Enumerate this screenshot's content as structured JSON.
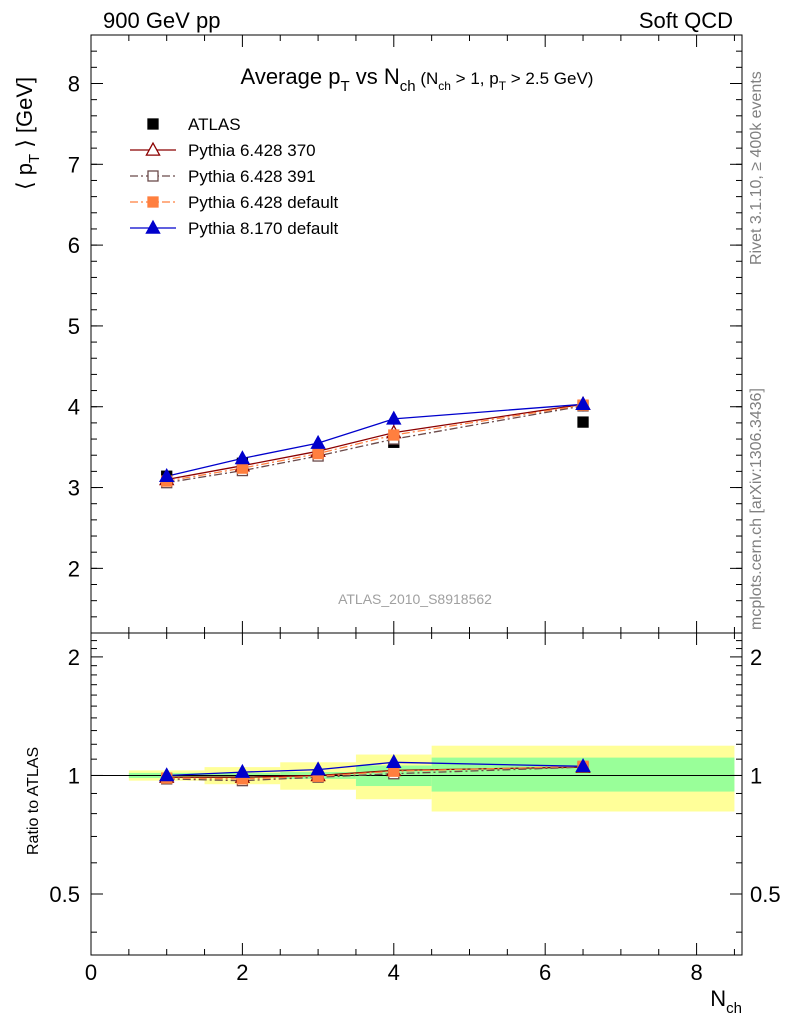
{
  "header": {
    "left": "900 GeV pp",
    "right": "Soft QCD"
  },
  "side_labels": {
    "rivet": "Rivet 3.1.10, ≥ 400k events",
    "mcplots": "mcplots.cern.ch [arXiv:1306.3436]"
  },
  "title": {
    "main_a": "Average p",
    "main_sub": "T",
    "main_b": " vs N",
    "main_sub2": "ch",
    "cond_a": " (N",
    "cond_sub": "ch",
    "cond_b": " > 1, p",
    "cond_sub2": "T",
    "cond_c": " > 2.5 GeV)"
  },
  "y_label": {
    "a": "⟨ p",
    "sub": "T",
    "b": " ⟩  [GeV]"
  },
  "ratio_label": "Ratio to ATLAS",
  "x_label": {
    "a": "N",
    "sub": "ch"
  },
  "watermark": "ATLAS_2010_S8918562",
  "colors": {
    "atlas": "#000000",
    "py370": "#8b0000",
    "py391": "#6b4a4a",
    "py6def": "#ff7f3f",
    "py8": "#0000cc",
    "band_outer": "#ffff99",
    "band_inner": "#99ff99"
  },
  "chart_data": [
    {
      "type": "line",
      "panel": "main",
      "xlim": [
        0,
        8.6
      ],
      "ylim": [
        1.2,
        8.6
      ],
      "yticks": [
        2,
        3,
        4,
        5,
        6,
        7,
        8
      ],
      "legend_position": "top-left",
      "series": [
        {
          "key": "atlas",
          "name": "ATLAS",
          "marker": "square-filled",
          "line": "none",
          "points": [
            [
              1,
              3.14
            ],
            [
              2,
              3.3
            ],
            [
              3,
              3.43
            ],
            [
              4,
              3.56
            ],
            [
              6.5,
              3.81
            ]
          ]
        },
        {
          "key": "py370",
          "name": "Pythia 6.428 370",
          "marker": "triangle-open",
          "line": "solid",
          "points": [
            [
              1,
              3.1
            ],
            [
              2,
              3.27
            ],
            [
              3,
              3.45
            ],
            [
              4,
              3.68
            ],
            [
              6.5,
              4.03
            ]
          ]
        },
        {
          "key": "py391",
          "name": "Pythia 6.428 391",
          "marker": "square-open",
          "line": "dashdot",
          "points": [
            [
              1,
              3.06
            ],
            [
              2,
              3.21
            ],
            [
              3,
              3.39
            ],
            [
              4,
              3.6
            ],
            [
              6.5,
              4.01
            ]
          ]
        },
        {
          "key": "py6def",
          "name": "Pythia 6.428 default",
          "marker": "square-filled",
          "line": "dashdot",
          "points": [
            [
              1,
              3.08
            ],
            [
              2,
              3.24
            ],
            [
              3,
              3.42
            ],
            [
              4,
              3.65
            ],
            [
              6.5,
              4.02
            ]
          ]
        },
        {
          "key": "py8",
          "name": "Pythia 8.170 default",
          "marker": "triangle-filled",
          "line": "solid",
          "points": [
            [
              1,
              3.14
            ],
            [
              2,
              3.36
            ],
            [
              3,
              3.55
            ],
            [
              4,
              3.85
            ],
            [
              6.5,
              4.03
            ]
          ]
        }
      ]
    },
    {
      "type": "line",
      "panel": "ratio",
      "xlim": [
        0,
        8.6
      ],
      "ylim": [
        0.35,
        2.3
      ],
      "yticks": [
        0.5,
        1,
        2
      ],
      "xticks": [
        0,
        2,
        4,
        6,
        8
      ],
      "reference_line": 1,
      "uncertainty_bands": [
        {
          "x": [
            0.5,
            1.5
          ],
          "outer": [
            0.97,
            1.03
          ],
          "inner": [
            0.985,
            1.015
          ]
        },
        {
          "x": [
            1.5,
            2.5
          ],
          "outer": [
            0.95,
            1.05
          ],
          "inner": [
            0.985,
            1.015
          ]
        },
        {
          "x": [
            2.5,
            3.5
          ],
          "outer": [
            0.92,
            1.08
          ],
          "inner": [
            0.98,
            1.02
          ]
        },
        {
          "x": [
            3.5,
            4.5
          ],
          "outer": [
            0.87,
            1.13
          ],
          "inner": [
            0.94,
            1.06
          ]
        },
        {
          "x": [
            4.5,
            8.5
          ],
          "outer": [
            0.81,
            1.19
          ],
          "inner": [
            0.91,
            1.11
          ]
        }
      ],
      "series": [
        {
          "key": "py370",
          "points": [
            [
              1,
              0.99
            ],
            [
              2,
              0.99
            ],
            [
              3,
              1.0
            ],
            [
              4,
              1.03
            ],
            [
              6.5,
              1.05
            ]
          ]
        },
        {
          "key": "py391",
          "points": [
            [
              1,
              0.98
            ],
            [
              2,
              0.97
            ],
            [
              3,
              0.99
            ],
            [
              4,
              1.01
            ],
            [
              6.5,
              1.05
            ]
          ]
        },
        {
          "key": "py6def",
          "points": [
            [
              1,
              0.985
            ],
            [
              2,
              0.98
            ],
            [
              3,
              0.995
            ],
            [
              4,
              1.025
            ],
            [
              6.5,
              1.055
            ]
          ]
        },
        {
          "key": "py8",
          "points": [
            [
              1,
              1.0
            ],
            [
              2,
              1.02
            ],
            [
              3,
              1.035
            ],
            [
              4,
              1.08
            ],
            [
              6.5,
              1.055
            ]
          ]
        }
      ]
    }
  ]
}
